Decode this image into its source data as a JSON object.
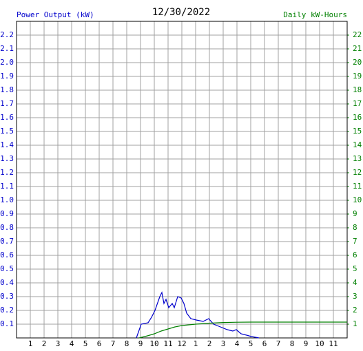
{
  "chart_data": {
    "type": "line",
    "title": "12/30/2022",
    "xlim": [
      0,
      24
    ],
    "xticks": [
      1,
      2,
      3,
      4,
      5,
      6,
      7,
      8,
      9,
      10,
      11,
      12,
      {
        "value": 13,
        "label": "1"
      },
      {
        "value": 14,
        "label": "2"
      },
      {
        "value": 15,
        "label": "3"
      },
      {
        "value": 16,
        "label": "4"
      },
      {
        "value": 17,
        "label": "5"
      },
      {
        "value": 18,
        "label": "6"
      },
      {
        "value": 19,
        "label": "7"
      },
      {
        "value": 20,
        "label": "8"
      },
      {
        "value": 21,
        "label": "9"
      },
      {
        "value": 22,
        "label": "10"
      },
      {
        "value": 23,
        "label": "11"
      }
    ],
    "ylim": [
      0,
      2.3
    ],
    "yticks": [
      0.1,
      0.2,
      0.3,
      0.4,
      0.5,
      0.6,
      0.7,
      0.8,
      0.9,
      {
        "value": 1,
        "label": "1.0"
      },
      1.1,
      1.2,
      1.3,
      1.4,
      1.5,
      1.6,
      1.7,
      1.8,
      1.9,
      {
        "value": 2,
        "label": "2.0"
      },
      2.1,
      2.2
    ],
    "y2lim": [
      0,
      23
    ],
    "y2ticks": [
      1,
      2,
      3,
      4,
      5,
      6,
      7,
      8,
      9,
      10,
      11,
      12,
      13,
      14,
      15,
      16,
      17,
      18,
      19,
      20,
      21,
      22
    ],
    "grid": true,
    "series": [
      {
        "name": "Power Output (kW)",
        "color": "#0000cc",
        "x": [
          8.7,
          9.05,
          9.55,
          9.8,
          10.05,
          10.4,
          10.55,
          10.7,
          10.85,
          11.05,
          11.3,
          11.45,
          11.7,
          11.95,
          12.15,
          12.35,
          12.65,
          13.05,
          13.55,
          13.95,
          14.3,
          14.8,
          15.3,
          15.7,
          15.95,
          16.3,
          16.7,
          17.05,
          17.6
        ],
        "values": [
          0,
          0.1,
          0.11,
          0.15,
          0.2,
          0.3,
          0.33,
          0.25,
          0.28,
          0.22,
          0.25,
          0.22,
          0.3,
          0.29,
          0.25,
          0.18,
          0.14,
          0.13,
          0.12,
          0.14,
          0.1,
          0.08,
          0.06,
          0.05,
          0.06,
          0.03,
          0.02,
          0.01,
          0
        ]
      },
      {
        "name": "Daily kW-Hours",
        "color": "#008000",
        "axis": "y2",
        "x": [
          8.9,
          9.5,
          10,
          10.5,
          11,
          11.5,
          12,
          12.5,
          13,
          14,
          15,
          16,
          17,
          24
        ],
        "values": [
          0,
          0.15,
          0.3,
          0.5,
          0.65,
          0.8,
          0.9,
          0.95,
          1.0,
          1.07,
          1.12,
          1.14,
          1.15,
          1.15
        ]
      }
    ]
  }
}
